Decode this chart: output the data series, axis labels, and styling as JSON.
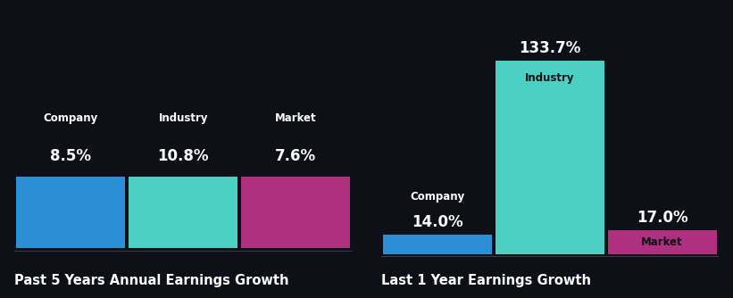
{
  "bg_color": "#0d1117",
  "chart1": {
    "title": "Past 5 Years Annual Earnings Growth",
    "bars": [
      {
        "label": "Company",
        "value": 8.5,
        "color": "#2a8fd4"
      },
      {
        "label": "Industry",
        "value": 10.8,
        "color": "#4dd0c4"
      },
      {
        "label": "Market",
        "value": 7.6,
        "color": "#b03080"
      }
    ]
  },
  "chart2": {
    "title": "Last 1 Year Earnings Growth",
    "bars": [
      {
        "label": "Company",
        "value": 14.0,
        "color": "#2a8fd4"
      },
      {
        "label": "Industry",
        "value": 133.7,
        "color": "#4dd0c4"
      },
      {
        "label": "Market",
        "value": 17.0,
        "color": "#b03080"
      }
    ]
  },
  "title_color": "#ffffff",
  "label_color": "#ffffff",
  "value_color": "#ffffff",
  "title_fontsize": 10.5,
  "label_fontsize": 8.5,
  "value_fontsize": 12,
  "bar_height": 0.32,
  "separator_color": "#3a3a4a"
}
